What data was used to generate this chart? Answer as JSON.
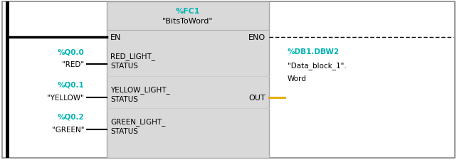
{
  "bg_color": "#ffffff",
  "border_color": "#000000",
  "box_bg": "#d9d9d9",
  "fc1_label": "%FC1",
  "fc1_sublabel": "\"BitsToWord\"",
  "cyan_color": "#00b4b4",
  "orange_color": "#e6a800",
  "text_color": "#000000",
  "gray_text": "#505050",
  "en_label": "EN",
  "eno_label": "ENO",
  "inputs": [
    {
      "address": "%Q0.0",
      "name": "\"RED\"",
      "pin_line1": "RED_LIGHT_",
      "pin_line2": "STATUS",
      "row": 0
    },
    {
      "address": "%Q0.1",
      "name": "\"YELLOW\"",
      "pin_line1": "YELLOW_LIGHT_",
      "pin_line2": "STATUS",
      "row": 1
    },
    {
      "address": "%Q0.2",
      "name": "\"GREEN\"",
      "pin_line1": "GREEN_LIGHT_",
      "pin_line2": "STATUS",
      "row": 2
    }
  ],
  "output": {
    "address": "%DB1.DBW2",
    "db_name": "\"Data_block_1\".",
    "word": "Word",
    "pin": "OUT"
  }
}
